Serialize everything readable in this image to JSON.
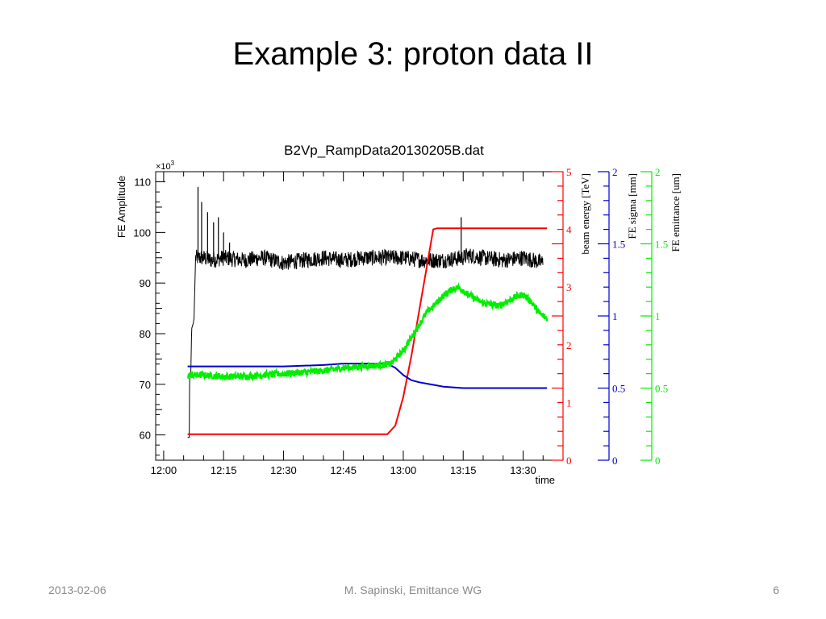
{
  "slide": {
    "title": "Example 3: proton data II",
    "footer_date": "2013-02-06",
    "footer_center": "M. Sapinski, Emittance WG",
    "page_number": "6"
  },
  "colors": {
    "amplitude": "#000000",
    "energy": "#ff0000",
    "sigma": "#0000cc",
    "emittance": "#00ee00"
  },
  "chart_data": {
    "type": "line",
    "title": "B2Vp_RampData20130205B.dat",
    "xlabel": "time",
    "x_ticks": [
      "12:00",
      "12:15",
      "12:30",
      "12:45",
      "13:00",
      "13:15",
      "13:30"
    ],
    "x_tick_minutes": [
      0,
      15,
      30,
      45,
      60,
      75,
      90
    ],
    "xlim_minutes": [
      -2,
      100
    ],
    "grid": false,
    "legend": "none",
    "axes": {
      "amplitude": {
        "label": "FE Amplitude",
        "exponent": "×10",
        "exponent_power": "3",
        "ylim": [
          55,
          112
        ],
        "ticks": [
          60,
          70,
          80,
          90,
          100,
          110
        ]
      },
      "energy": {
        "label": "beam energy [TeV]",
        "ylim": [
          0,
          5
        ],
        "ticks": [
          0,
          1,
          2,
          3,
          4,
          5
        ]
      },
      "sigma": {
        "label": "FE sigma [mm]",
        "ylim": [
          0,
          2
        ],
        "ticks": [
          0,
          0.5,
          1,
          1.5,
          2
        ],
        "tick_labels": [
          "0",
          "0.5",
          "1",
          "1.5",
          "2"
        ]
      },
      "emittance": {
        "label": "FE emittance [um]",
        "ylim": [
          0,
          2
        ],
        "ticks": [
          0,
          0.5,
          1,
          1.5,
          2
        ],
        "tick_labels": [
          "0",
          "0.5",
          "1",
          "1.5",
          "2"
        ]
      }
    },
    "series": [
      {
        "axis": "amplitude",
        "x": [
          6,
          6.4,
          6.5,
          6.8,
          7,
          7.4,
          7.6,
          8,
          9,
          10,
          12,
          15,
          20,
          25,
          30,
          35,
          40,
          45,
          50,
          55,
          60,
          65,
          70,
          75,
          76,
          80,
          85,
          90,
          95
        ],
        "y": [
          59.5,
          59.5,
          72,
          72.5,
          81,
          82,
          83,
          95,
          95,
          95,
          94.5,
          95,
          94.5,
          95,
          94,
          94.5,
          95,
          94.5,
          95,
          95,
          95,
          94.5,
          94.5,
          95,
          95.5,
          95,
          94.5,
          95,
          94
        ],
        "spikes": [
          {
            "x": 8.6,
            "y": 109
          },
          {
            "x": 9.5,
            "y": 106
          },
          {
            "x": 11,
            "y": 104
          },
          {
            "x": 12.5,
            "y": 102
          },
          {
            "x": 13.7,
            "y": 103
          },
          {
            "x": 15,
            "y": 100
          },
          {
            "x": 16.5,
            "y": 98
          },
          {
            "x": 74.5,
            "y": 103
          }
        ]
      },
      {
        "axis": "energy",
        "x": [
          6,
          56,
          58,
          60,
          62,
          64,
          66,
          67.5,
          68.5,
          96
        ],
        "y": [
          0.45,
          0.45,
          0.6,
          1.1,
          1.8,
          2.6,
          3.4,
          4.0,
          4.02,
          4.02
        ]
      },
      {
        "axis": "sigma",
        "x": [
          6,
          20,
          30,
          40,
          45,
          50,
          56,
          58,
          60,
          62,
          64,
          66,
          68,
          70,
          75,
          85,
          96
        ],
        "y": [
          0.65,
          0.65,
          0.65,
          0.66,
          0.67,
          0.67,
          0.67,
          0.64,
          0.59,
          0.555,
          0.54,
          0.53,
          0.52,
          0.51,
          0.5,
          0.5,
          0.5
        ]
      },
      {
        "axis": "emittance",
        "x": [
          6,
          10,
          15,
          20,
          25,
          30,
          35,
          40,
          45,
          50,
          55,
          57,
          60,
          62,
          64,
          66,
          68,
          70,
          72,
          74,
          76,
          78,
          80,
          82,
          84,
          86,
          88,
          90,
          92,
          94,
          96
        ],
        "y": [
          0.59,
          0.59,
          0.58,
          0.58,
          0.59,
          0.6,
          0.61,
          0.62,
          0.64,
          0.65,
          0.66,
          0.67,
          0.76,
          0.85,
          0.94,
          1.03,
          1.08,
          1.14,
          1.18,
          1.2,
          1.15,
          1.12,
          1.09,
          1.08,
          1.07,
          1.1,
          1.13,
          1.15,
          1.1,
          1.02,
          0.98
        ]
      }
    ]
  }
}
